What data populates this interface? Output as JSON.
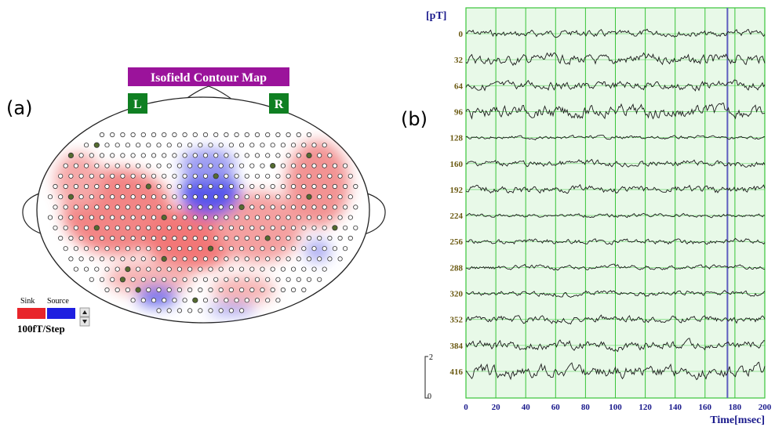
{
  "panel_a": {
    "letter": "(a)",
    "title": "Isofield Contour Map",
    "left_marker": "L",
    "right_marker": "R",
    "legend": {
      "sink_label": "Sink",
      "source_label": "Source",
      "sink_color": "#e8252a",
      "source_color": "#1f1fe0",
      "step_label": "100fT/Step"
    }
  },
  "panel_b": {
    "letter": "(b)",
    "unit_label": "[pT]",
    "x_axis_label": "Time[msec]",
    "x_ticks": [
      "0",
      "20",
      "40",
      "60",
      "80",
      "100",
      "120",
      "140",
      "160",
      "180",
      "200"
    ],
    "channel_offsets": [
      "0",
      "32",
      "64",
      "96",
      "128",
      "160",
      "192",
      "224",
      "256",
      "288",
      "320",
      "352",
      "384",
      "416"
    ],
    "scale_bar": {
      "top": "2",
      "bottom": "0"
    },
    "grid_color": "#39c439",
    "background_color": "#e8f9e8",
    "cursor_color": "#5d5dbf",
    "cursor_time": 175
  }
}
